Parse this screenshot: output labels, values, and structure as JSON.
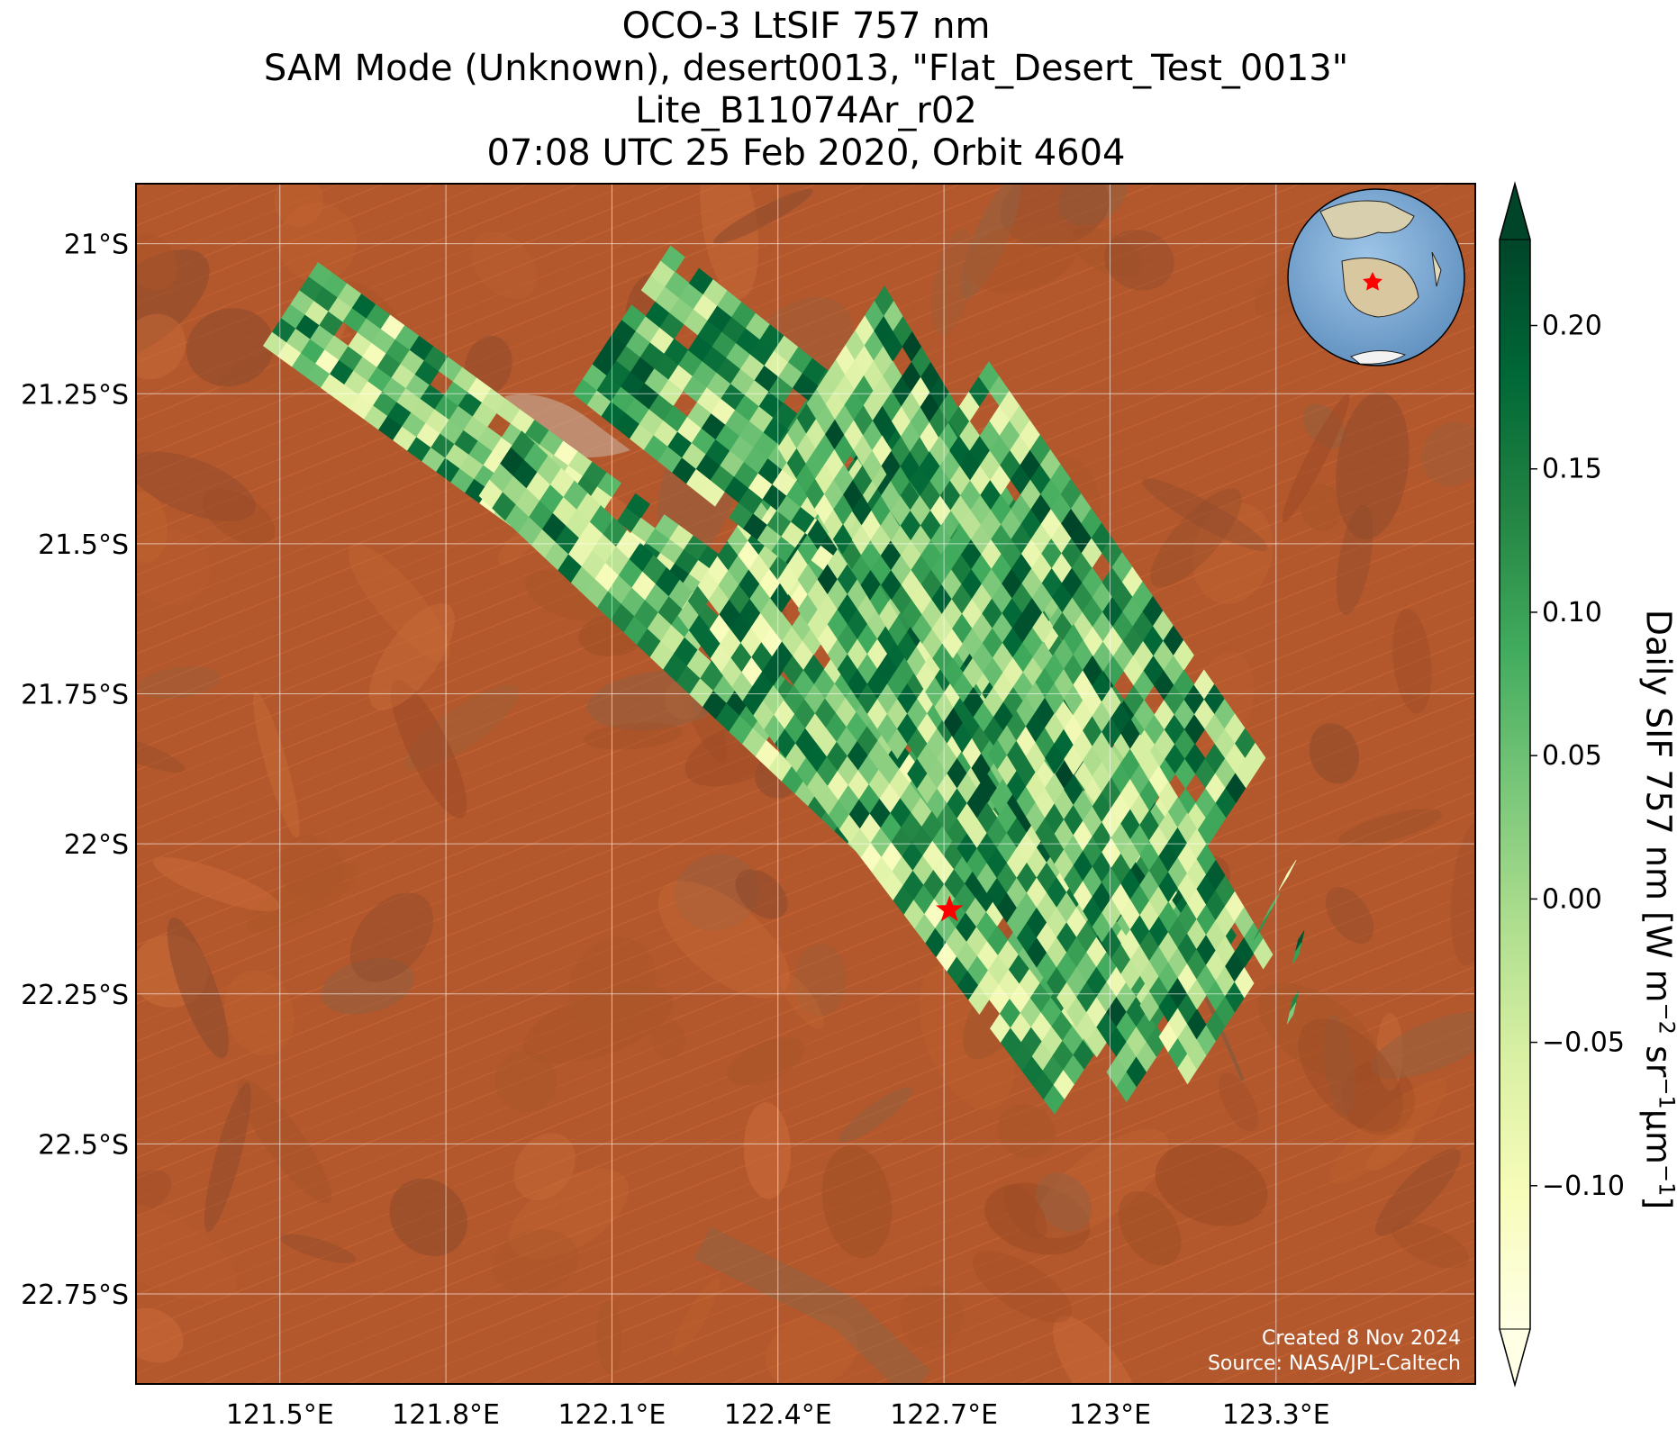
{
  "title": {
    "line1": "OCO-3 LtSIF 757 nm",
    "line2": "SAM Mode (Unknown), desert0013, \"Flat_Desert_Test_0013\"",
    "line3": "Lite_B11074Ar_r02",
    "line4": "07:08 UTC 25 Feb 2020, Orbit 4604"
  },
  "map": {
    "lon_range": [
      121.24,
      123.66
    ],
    "lat_range": [
      -22.9,
      -20.9
    ],
    "lon_ticks": [
      121.5,
      121.8,
      122.1,
      122.4,
      122.7,
      123.0,
      123.3
    ],
    "lon_labels": [
      "121.5°E",
      "121.8°E",
      "122.1°E",
      "122.4°E",
      "122.7°E",
      "123°E",
      "123.3°E"
    ],
    "lat_ticks": [
      -21.0,
      -21.25,
      -21.5,
      -21.75,
      -22.0,
      -22.25,
      -22.5,
      -22.75
    ],
    "lat_labels": [
      "21°S",
      "21.25°S",
      "21.5°S",
      "21.75°S",
      "22°S",
      "22.25°S",
      "22.5°S",
      "22.75°S"
    ],
    "grid": true,
    "target": {
      "lon": 122.71,
      "lat": -22.11,
      "color": "#ff0000"
    },
    "credit_line1": "Created 8 Nov 2024",
    "credit_line2": "Source: NASA/JPL-Caltech",
    "inset": "globe-inset",
    "colors": {
      "ground": "#b0552b",
      "target": "#ff0000",
      "grid": "#ffffff"
    }
  },
  "colorbar": {
    "label": "Daily SIF 757 nm [W m",
    "label_sup1": "−2",
    "label_mid": " sr",
    "label_sup2": "−1",
    "label_mid2": "μm",
    "label_sup3": "−1",
    "label_end": "]",
    "vmin": -0.15,
    "vmax": 0.23,
    "ticks": [
      0.2,
      0.15,
      0.1,
      0.05,
      0.0,
      -0.05,
      -0.1
    ],
    "tick_labels": [
      "0.20",
      "0.15",
      "0.10",
      "0.05",
      "0.00",
      "−0.05",
      "−0.10"
    ],
    "extend": "both",
    "colormap": "YlGn",
    "colormap_stops": [
      "#ffffe5",
      "#f7fcb9",
      "#d9f0a3",
      "#addd8e",
      "#78c679",
      "#41ab5d",
      "#238443",
      "#006837",
      "#004529"
    ]
  },
  "chart_data": {
    "type": "scatter",
    "title": "OCO-3 LtSIF 757 nm",
    "xlabel": "",
    "ylabel": "",
    "xlim": [
      121.24,
      123.66
    ],
    "ylim": [
      -22.9,
      -20.9
    ],
    "value_label": "Daily SIF 757 nm [W m−2 sr−1μm−1]",
    "value_range": [
      -0.15,
      0.23
    ],
    "swaths": [
      {
        "lon_start": 121.47,
        "lat_start": -21.17,
        "lon_end": 122.2,
        "lat_end": -21.66,
        "width_lon": 0.18,
        "value_mean": 0.05
      },
      {
        "lon_start": 121.86,
        "lat_start": -21.42,
        "lon_end": 122.55,
        "lat_end": -22.02,
        "width_lon": 0.14,
        "value_mean": 0.06
      },
      {
        "lon_start": 122.22,
        "lat_start": -21.62,
        "lon_end": 122.9,
        "lat_end": -22.45,
        "width_lon": 0.42,
        "value_mean": 0.05
      },
      {
        "lon_start": 122.03,
        "lat_start": -21.25,
        "lon_end": 122.85,
        "lat_end": -21.85,
        "width_lon": 0.32,
        "value_mean": 0.06
      },
      {
        "lon_start": 122.4,
        "lat_start": -21.56,
        "lon_end": 123.03,
        "lat_end": -22.43,
        "width_lon": 0.36,
        "value_mean": 0.07
      },
      {
        "lon_start": 122.4,
        "lat_start": -21.34,
        "lon_end": 122.8,
        "lat_end": -21.95,
        "width_lon": 0.35,
        "value_mean": 0.07
      },
      {
        "lon_start": 122.55,
        "lat_start": -21.52,
        "lon_end": 123.05,
        "lat_end": -22.18,
        "width_lon": 0.42,
        "value_mean": 0.07
      },
      {
        "lon_start": 122.78,
        "lat_start": -21.85,
        "lon_end": 123.14,
        "lat_end": -22.4,
        "width_lon": 0.28,
        "value_mean": 0.06
      },
      {
        "lon_start": 123.32,
        "lat_start": -22.05,
        "lon_end": 123.26,
        "lat_end": -22.16,
        "width_lon": 0.03,
        "value_mean": 0.0
      },
      {
        "lon_start": 123.34,
        "lat_start": -22.16,
        "lon_end": 123.33,
        "lat_end": -22.2,
        "width_lon": 0.02,
        "value_mean": 0.15
      },
      {
        "lon_start": 123.33,
        "lat_start": -22.26,
        "lon_end": 123.32,
        "lat_end": -22.3,
        "width_lon": 0.02,
        "value_mean": 0.05
      }
    ]
  }
}
